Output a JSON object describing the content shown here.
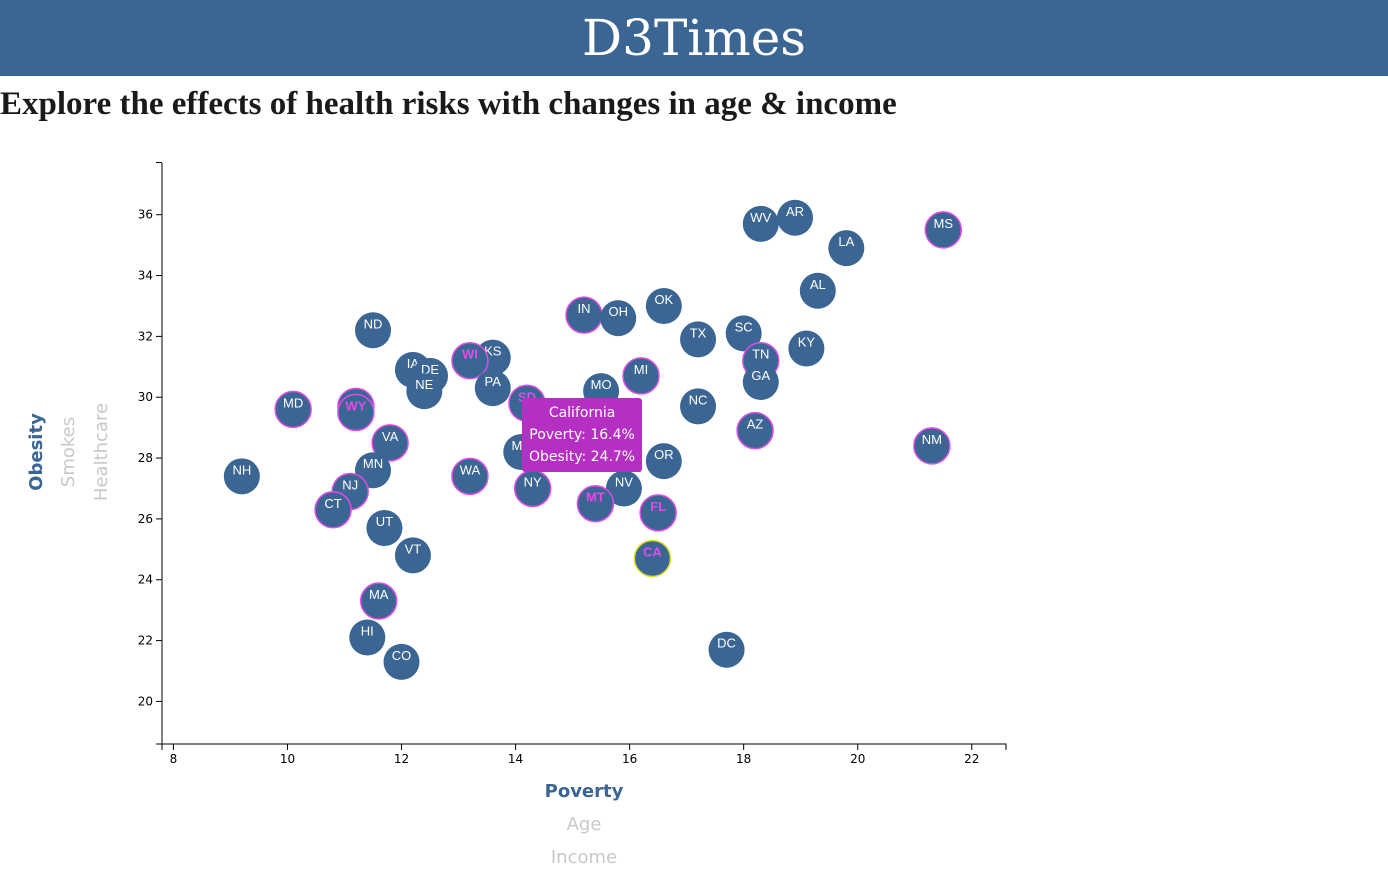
{
  "header": {
    "title": "D3Times"
  },
  "subtitle": "Explore the effects of health risks with changes in age & income",
  "axes": {
    "x_options": [
      {
        "label": "Poverty",
        "active": true
      },
      {
        "label": "Age",
        "active": false
      },
      {
        "label": "Income",
        "active": false
      }
    ],
    "y_options": [
      {
        "label": "Obesity",
        "active": true
      },
      {
        "label": "Smokes",
        "active": false
      },
      {
        "label": "Healthcare",
        "active": false
      }
    ]
  },
  "tooltip": {
    "state": "California",
    "line1": "Poverty: 16.4%",
    "line2": "Obesity: 24.7%"
  },
  "colors": {
    "header": "#3b6592",
    "circle": "#3b6592",
    "highlight_stroke": "#e04ce8",
    "highlight_text": "#e04ce8",
    "selected_stroke": "#d8dc2a",
    "tooltip": "#b52fc2"
  },
  "chart_data": {
    "type": "scatter",
    "xlabel": "Poverty",
    "ylabel": "Obesity",
    "xlim": [
      7.8,
      22.6
    ],
    "ylim": [
      18.6,
      37.7
    ],
    "xticks": [
      8,
      10,
      12,
      14,
      16,
      18,
      20,
      22
    ],
    "yticks": [
      20,
      22,
      24,
      26,
      28,
      30,
      32,
      34,
      36
    ],
    "points": [
      {
        "abbr": "WV",
        "x": 18.3,
        "y": 35.7
      },
      {
        "abbr": "AR",
        "x": 18.9,
        "y": 35.9
      },
      {
        "abbr": "MS",
        "x": 21.5,
        "y": 35.5,
        "highlight": true
      },
      {
        "abbr": "LA",
        "x": 19.8,
        "y": 34.9
      },
      {
        "abbr": "AL",
        "x": 19.3,
        "y": 33.5
      },
      {
        "abbr": "OK",
        "x": 16.6,
        "y": 33.0
      },
      {
        "abbr": "IN",
        "x": 15.2,
        "y": 32.7,
        "highlight": true
      },
      {
        "abbr": "OH",
        "x": 15.8,
        "y": 32.6
      },
      {
        "abbr": "ND",
        "x": 11.5,
        "y": 32.2
      },
      {
        "abbr": "TX",
        "x": 17.2,
        "y": 31.9
      },
      {
        "abbr": "SC",
        "x": 18.0,
        "y": 32.1
      },
      {
        "abbr": "KY",
        "x": 19.1,
        "y": 31.6
      },
      {
        "abbr": "TN",
        "x": 18.3,
        "y": 31.2,
        "highlight": true
      },
      {
        "abbr": "KS",
        "x": 13.6,
        "y": 31.3
      },
      {
        "abbr": "WI",
        "x": 13.2,
        "y": 31.2,
        "highlight": true,
        "pinkText": true
      },
      {
        "abbr": "IA",
        "x": 12.2,
        "y": 30.9
      },
      {
        "abbr": "DE",
        "x": 12.5,
        "y": 30.7
      },
      {
        "abbr": "GA",
        "x": 18.3,
        "y": 30.5
      },
      {
        "abbr": "MI",
        "x": 16.2,
        "y": 30.7,
        "highlight": true
      },
      {
        "abbr": "NE",
        "x": 12.4,
        "y": 30.2
      },
      {
        "abbr": "PA",
        "x": 13.6,
        "y": 30.3
      },
      {
        "abbr": "MO",
        "x": 15.5,
        "y": 30.2
      },
      {
        "abbr": "SD",
        "x": 14.2,
        "y": 29.8,
        "highlight": true,
        "pinkText": true
      },
      {
        "abbr": "NC",
        "x": 17.2,
        "y": 29.7
      },
      {
        "abbr": "MD",
        "x": 10.1,
        "y": 29.6,
        "highlight": true
      },
      {
        "abbr": "AK",
        "x": 11.2,
        "y": 29.7,
        "highlight": true
      },
      {
        "abbr": "WY",
        "x": 11.2,
        "y": 29.5,
        "highlight": true,
        "pinkText": true
      },
      {
        "abbr": "AZ",
        "x": 18.2,
        "y": 28.9,
        "highlight": true
      },
      {
        "abbr": "VA",
        "x": 11.8,
        "y": 28.5,
        "highlight": true
      },
      {
        "abbr": "NM",
        "x": 21.3,
        "y": 28.4,
        "highlight": true
      },
      {
        "abbr": "ME",
        "x": 14.1,
        "y": 28.2
      },
      {
        "abbr": "OR",
        "x": 16.6,
        "y": 27.9
      },
      {
        "abbr": "MN",
        "x": 11.5,
        "y": 27.6
      },
      {
        "abbr": "NH",
        "x": 9.2,
        "y": 27.4
      },
      {
        "abbr": "WA",
        "x": 13.2,
        "y": 27.4,
        "highlight": true
      },
      {
        "abbr": "NY",
        "x": 14.3,
        "y": 27.0,
        "highlight": true
      },
      {
        "abbr": "NV",
        "x": 15.9,
        "y": 27.0
      },
      {
        "abbr": "NJ",
        "x": 11.1,
        "y": 26.9,
        "highlight": true
      },
      {
        "abbr": "MT",
        "x": 15.4,
        "y": 26.5,
        "highlight": true,
        "pinkText": true
      },
      {
        "abbr": "CT",
        "x": 10.8,
        "y": 26.3,
        "highlight": true
      },
      {
        "abbr": "FL",
        "x": 16.5,
        "y": 26.2,
        "highlight": true,
        "pinkText": true
      },
      {
        "abbr": "UT",
        "x": 11.7,
        "y": 25.7
      },
      {
        "abbr": "VT",
        "x": 12.2,
        "y": 24.8
      },
      {
        "abbr": "CA",
        "x": 16.4,
        "y": 24.7,
        "selected": true,
        "pinkText": true
      },
      {
        "abbr": "MA",
        "x": 11.6,
        "y": 23.3,
        "highlight": true
      },
      {
        "abbr": "HI",
        "x": 11.4,
        "y": 22.1
      },
      {
        "abbr": "DC",
        "x": 17.7,
        "y": 21.7
      },
      {
        "abbr": "CO",
        "x": 12.0,
        "y": 21.3
      }
    ]
  }
}
